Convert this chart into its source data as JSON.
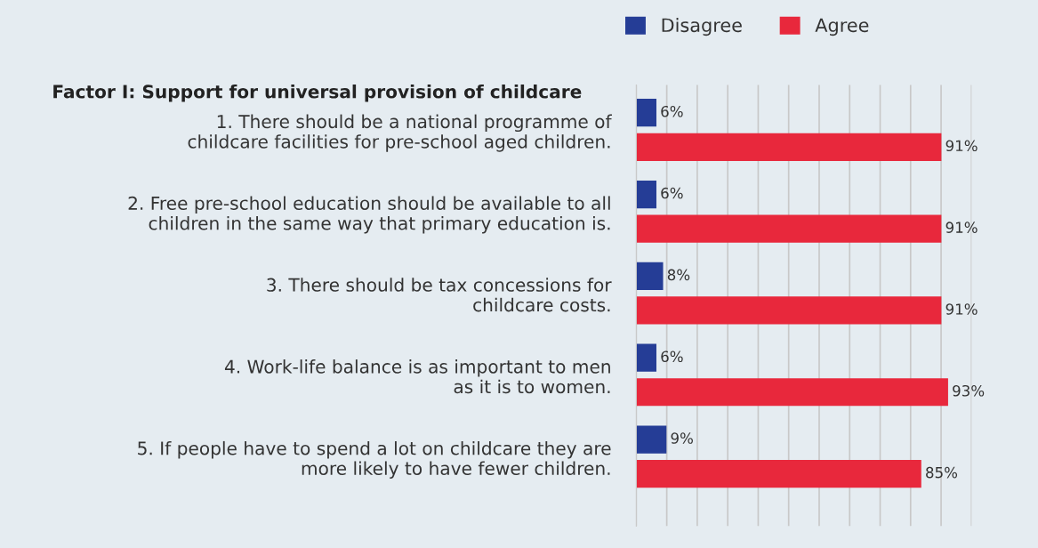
{
  "chart_data": {
    "type": "bar",
    "orientation": "horizontal",
    "title": "Factor I: Support for universal provision of childcare",
    "categories": [
      "1. There should be a national programme of\nchildcare facilities for pre-school aged children.",
      "2. Free pre-school education should be available to all\nchildren in the same way that primary education is.",
      "3. There should be tax concessions for\nchildcare costs.",
      "4. Work-life balance is as important to men\nas it is to women.",
      "5. If people have to spend a lot on childcare they are\nmore likely to have fewer children."
    ],
    "series": [
      {
        "name": "Disagree",
        "color": "#253d96",
        "values": [
          6,
          6,
          8,
          6,
          9
        ],
        "value_labels": [
          "6%",
          "6%",
          "8%",
          "6%",
          "9%"
        ]
      },
      {
        "name": "Agree",
        "color": "#e8283c",
        "values": [
          91,
          91,
          91,
          93,
          85
        ],
        "value_labels": [
          "91%",
          "91%",
          "91%",
          "93%",
          "85%"
        ]
      }
    ],
    "xlim": [
      0,
      100
    ],
    "xticks": [
      {
        "value": 0,
        "label": null
      },
      {
        "value": 9.09,
        "label": null
      },
      {
        "value": 18.18,
        "label": null
      },
      {
        "value": 27.27,
        "label": null
      },
      {
        "value": 36.36,
        "label": null
      },
      {
        "value": 45.45,
        "label": null
      },
      {
        "value": 54.55,
        "label": null
      },
      {
        "value": 63.64,
        "label": null
      },
      {
        "value": 72.73,
        "label": null
      },
      {
        "value": 81.82,
        "label": null
      },
      {
        "value": 90.91,
        "label": null
      },
      {
        "value": 100,
        "label": null
      }
    ],
    "grid": "x",
    "legend": "top",
    "tick_labels": "y"
  }
}
